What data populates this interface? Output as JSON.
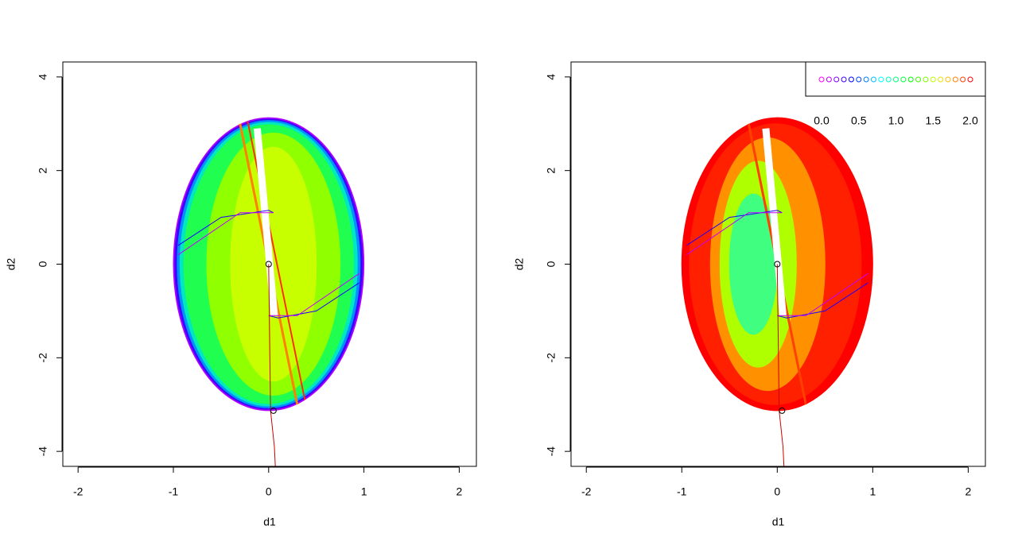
{
  "chart_data": [
    {
      "type": "line",
      "xlabel": "d1",
      "ylabel": "d2",
      "xlim": [
        -2.16,
        2.18
      ],
      "ylim": [
        -4.32,
        4.32
      ],
      "xticks": [
        -2,
        -1,
        0,
        1,
        2
      ],
      "yticks": [
        -4,
        -2,
        0,
        2,
        4
      ],
      "ellipses": [
        {
          "cx": 0,
          "cy": 0,
          "rx": 1.0,
          "ry": 3.13,
          "color": "#b000ff"
        },
        {
          "cx": 0,
          "cy": 0,
          "rx": 0.985,
          "ry": 3.1,
          "color": "#4000ff"
        },
        {
          "cx": 0,
          "cy": 0,
          "rx": 0.96,
          "ry": 3.07,
          "color": "#0090ff"
        },
        {
          "cx": 0,
          "cy": 0,
          "rx": 0.93,
          "ry": 3.03,
          "color": "#00e8c0"
        },
        {
          "cx": 0,
          "cy": 0,
          "rx": 0.89,
          "ry": 2.98,
          "color": "#20ff50"
        },
        {
          "cx": 0.05,
          "cy": 0,
          "rx": 0.7,
          "ry": 2.8,
          "color": "#90ff00"
        },
        {
          "cx": 0.05,
          "cy": 0,
          "rx": 0.45,
          "ry": 2.5,
          "color": "#c8ff00"
        }
      ],
      "series": [
        {
          "color": "#ff8000",
          "width": 3,
          "x": [
            -0.3,
            0.3
          ],
          "values": [
            3.0,
            -3.0
          ]
        },
        {
          "color": "#ff3000",
          "width": 2,
          "x": [
            -0.22,
            0.38
          ],
          "values": [
            3.05,
            -2.9
          ]
        },
        {
          "color": "#ffffff",
          "width": 9,
          "x": [
            -0.12,
            0.06
          ],
          "values": [
            2.9,
            -1.1
          ]
        },
        {
          "color": "#2000ff",
          "width": 1,
          "x": [
            -0.95,
            -0.5,
            0,
            0.05
          ],
          "values": [
            0.4,
            1.0,
            1.15,
            1.1
          ]
        },
        {
          "color": "#2000ff",
          "width": 1,
          "x": [
            0.95,
            0.5,
            0.1,
            0
          ],
          "values": [
            -0.4,
            -1.0,
            -1.15,
            -1.1
          ]
        },
        {
          "color": "#c000ff",
          "width": 1,
          "x": [
            -0.95,
            -0.3,
            0.05
          ],
          "values": [
            0.2,
            1.1,
            1.1
          ]
        },
        {
          "color": "#c000ff",
          "width": 1,
          "x": [
            0.95,
            0.3,
            0
          ],
          "values": [
            -0.2,
            -1.1,
            -1.1
          ]
        },
        {
          "color": "#cc0000",
          "width": 1,
          "x": [
            0,
            0.02,
            0.06,
            0.07
          ],
          "values": [
            0,
            -3.13,
            -3.9,
            -4.32
          ]
        }
      ],
      "points": {
        "x": [
          0,
          0.05
        ],
        "values": [
          0,
          -3.13
        ]
      }
    },
    {
      "type": "line",
      "xlabel": "d1",
      "ylabel": "d2",
      "xlim": [
        -2.16,
        2.18
      ],
      "ylim": [
        -4.32,
        4.32
      ],
      "xticks": [
        -2,
        -1,
        0,
        1,
        2
      ],
      "yticks": [
        -4,
        -2,
        0,
        2,
        4
      ],
      "ellipses": [
        {
          "cx": 0,
          "cy": 0,
          "rx": 1.0,
          "ry": 3.13,
          "color": "#ff0000"
        },
        {
          "cx": -0.02,
          "cy": 0,
          "rx": 0.9,
          "ry": 3.0,
          "color": "#ff2000"
        },
        {
          "cx": -0.1,
          "cy": 0,
          "rx": 0.6,
          "ry": 2.7,
          "color": "#ff9000"
        },
        {
          "cx": -0.2,
          "cy": 0,
          "rx": 0.4,
          "ry": 2.2,
          "color": "#b0ff00"
        },
        {
          "cx": -0.25,
          "cy": 0,
          "rx": 0.25,
          "ry": 1.5,
          "color": "#40ff80"
        }
      ],
      "series": [
        {
          "color": "#ff4000",
          "width": 3,
          "x": [
            -0.3,
            0.3
          ],
          "values": [
            3.0,
            -3.0
          ]
        },
        {
          "color": "#ffffff",
          "width": 9,
          "x": [
            -0.12,
            0.06
          ],
          "values": [
            2.9,
            -1.1
          ]
        },
        {
          "color": "#2000ff",
          "width": 1,
          "x": [
            -0.95,
            -0.5,
            0,
            0.05
          ],
          "values": [
            0.4,
            1.0,
            1.15,
            1.1
          ]
        },
        {
          "color": "#2000ff",
          "width": 1,
          "x": [
            0.95,
            0.5,
            0.1,
            0
          ],
          "values": [
            -0.4,
            -1.0,
            -1.15,
            -1.1
          ]
        },
        {
          "color": "#c000ff",
          "width": 1,
          "x": [
            -0.95,
            -0.3,
            0.05
          ],
          "values": [
            0.2,
            1.1,
            1.1
          ]
        },
        {
          "color": "#c000ff",
          "width": 1,
          "x": [
            0.95,
            0.3,
            0
          ],
          "values": [
            -0.2,
            -1.1,
            -1.1
          ]
        },
        {
          "color": "#cc0000",
          "width": 1,
          "x": [
            0,
            0.02,
            0.06,
            0.07
          ],
          "values": [
            0,
            -3.13,
            -3.9,
            -4.32
          ]
        }
      ],
      "points": {
        "x": [
          0,
          0.05
        ],
        "values": [
          0,
          -3.13
        ]
      },
      "legend": {
        "corner": "top-right",
        "lim": [
          0,
          2
        ],
        "ticks": [
          {
            "value": 0,
            "label": "0.0"
          },
          {
            "value": 0.5,
            "label": "0.5"
          },
          {
            "value": 1,
            "label": "1.0"
          },
          {
            "value": 1.5,
            "label": "1.5"
          },
          {
            "value": 2,
            "label": "2.0"
          }
        ],
        "colors": [
          "#ff00ff",
          "#bf00ff",
          "#8000ff",
          "#4000ff",
          "#0000ff",
          "#0040ff",
          "#0080ff",
          "#00bfff",
          "#00ffff",
          "#00ffbf",
          "#00ff80",
          "#00ff40",
          "#00ff00",
          "#40ff00",
          "#80ff00",
          "#bfff00",
          "#e6e600",
          "#ffbf00",
          "#ff8000",
          "#ff4000",
          "#ff0000"
        ]
      }
    }
  ]
}
